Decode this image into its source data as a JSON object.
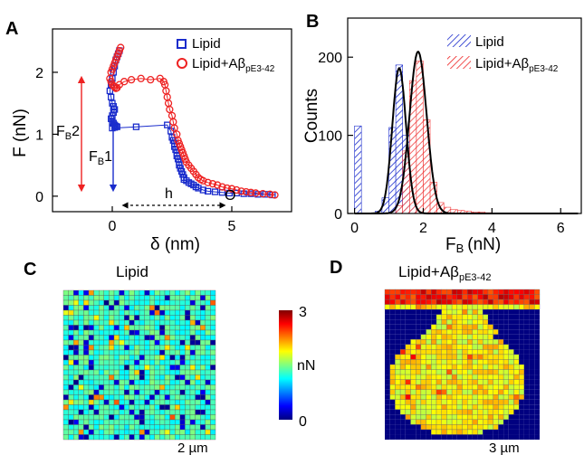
{
  "colors": {
    "lipid": "#1a2ccc",
    "lipid_abeta": "#ee2222",
    "fit": "#000000",
    "arrow_red": "#ee2222",
    "arrow_blue": "#1a2ccc",
    "map_background": "#000080"
  },
  "panels": {
    "a": {
      "letter": "A"
    },
    "b": {
      "letter": "B"
    },
    "c": {
      "letter": "C",
      "title": "Lipid",
      "scalebar": "2 µm"
    },
    "d": {
      "letter": "D",
      "title_main": "Lipid+Aβ",
      "title_sub": "pE3-42",
      "scalebar": "3 µm"
    }
  },
  "colorbar": {
    "min_label": "0",
    "max_label": "3",
    "unit": "nN",
    "stops": [
      "#00007f",
      "#0000ff",
      "#0080ff",
      "#00ffff",
      "#80ff80",
      "#ffff00",
      "#ff8000",
      "#ff0000",
      "#7f0000"
    ]
  },
  "chart_data": [
    {
      "type": "line",
      "panel": "A",
      "xlabel": "δ (nm)",
      "ylabel": "F (nN)",
      "xlim": [
        -2.5,
        7.5
      ],
      "ylim": [
        -0.25,
        2.7
      ],
      "xticks": [
        "0",
        "5"
      ],
      "yticks": [
        "0",
        "1",
        "2"
      ],
      "legend_placement": "top-right",
      "annotations": {
        "fb2": "F",
        "fb2_sub": "B",
        "fb2_num": "2",
        "fb1": "F",
        "fb1_sub": "B",
        "fb1_num": "1",
        "h": "h",
        "origin": "O"
      },
      "series": [
        {
          "name": "Lipid",
          "marker": "square",
          "x": [
            0.3,
            0.25,
            0.2,
            0.15,
            0.1,
            0.05,
            0.0,
            -0.05,
            -0.1,
            -0.05,
            0.0,
            0.05,
            0.1,
            0.05,
            0.0,
            -0.05,
            0.0,
            0.05,
            0.1,
            0.15,
            0.2,
            0.1,
            0.0,
            1.0,
            2.3,
            2.45,
            2.5,
            2.55,
            2.6,
            2.6,
            2.65,
            2.7,
            2.7,
            2.75,
            2.8,
            2.8,
            2.85,
            2.9,
            2.95,
            3.0,
            3.0,
            3.1,
            3.2,
            3.3,
            3.4,
            3.5,
            3.6,
            3.8,
            4.0,
            4.3,
            4.6,
            4.9,
            5.2,
            5.5,
            5.8,
            6.1,
            6.4,
            6.7
          ],
          "y": [
            2.35,
            2.3,
            2.25,
            2.2,
            2.1,
            2.0,
            1.9,
            1.8,
            1.7,
            1.6,
            1.5,
            1.45,
            1.4,
            1.35,
            1.3,
            1.25,
            1.2,
            1.18,
            1.15,
            1.13,
            1.12,
            1.11,
            1.1,
            1.12,
            1.15,
            1.05,
            0.95,
            0.9,
            0.85,
            0.8,
            0.75,
            0.7,
            0.65,
            0.6,
            0.55,
            0.5,
            0.45,
            0.4,
            0.35,
            0.3,
            0.27,
            0.25,
            0.22,
            0.2,
            0.18,
            0.15,
            0.13,
            0.1,
            0.08,
            0.07,
            0.06,
            0.05,
            0.05,
            0.04,
            0.04,
            0.03,
            0.03,
            0.02
          ]
        },
        {
          "name": "Lipid+Aβ",
          "name_sub": "pE3-42",
          "marker": "circle",
          "x": [
            0.35,
            0.3,
            0.25,
            0.2,
            0.15,
            0.1,
            0.05,
            0.0,
            -0.05,
            -0.1,
            -0.05,
            0.0,
            0.05,
            0.1,
            0.15,
            0.2,
            0.3,
            0.5,
            0.8,
            1.2,
            1.6,
            2.0,
            2.15,
            2.2,
            2.25,
            2.3,
            2.35,
            2.4,
            2.5,
            2.55,
            2.6,
            2.7,
            2.75,
            2.8,
            2.85,
            2.9,
            2.95,
            3.0,
            3.05,
            3.1,
            3.2,
            3.3,
            3.4,
            3.5,
            3.6,
            3.7,
            3.8,
            4.0,
            4.2,
            4.4,
            4.6,
            4.8,
            5.0,
            5.2,
            5.4,
            5.6,
            5.8,
            6.0,
            6.3,
            6.6,
            6.8
          ],
          "y": [
            2.4,
            2.35,
            2.3,
            2.25,
            2.2,
            2.15,
            2.1,
            2.05,
            2.0,
            1.9,
            1.85,
            1.8,
            1.78,
            1.76,
            1.74,
            1.75,
            1.8,
            1.85,
            1.88,
            1.9,
            1.88,
            1.9,
            1.85,
            1.8,
            1.7,
            1.6,
            1.5,
            1.4,
            1.3,
            1.2,
            1.1,
            1.0,
            0.9,
            0.85,
            0.8,
            0.75,
            0.7,
            0.65,
            0.6,
            0.55,
            0.5,
            0.45,
            0.4,
            0.35,
            0.3,
            0.27,
            0.25,
            0.22,
            0.2,
            0.18,
            0.15,
            0.13,
            0.12,
            0.1,
            0.08,
            0.07,
            0.06,
            0.05,
            0.04,
            0.03,
            0.02
          ]
        }
      ]
    },
    {
      "type": "bar",
      "panel": "B",
      "xlabel": "F",
      "xlabel_sub": "B",
      "xlabel_unit": "(nN)",
      "ylabel": "Counts",
      "xlim": [
        -0.2,
        6.6
      ],
      "ylim": [
        0,
        250
      ],
      "xticks": [
        "0",
        "2",
        "4",
        "6"
      ],
      "yticks": [
        "0",
        "100",
        "200"
      ],
      "legend_placement": "top-right",
      "bin_width": 0.2,
      "series": [
        {
          "name": "Lipid",
          "hatch": "diagonal",
          "bin_left": [
            0.0,
            0.6,
            0.8,
            1.0,
            1.2,
            1.4,
            1.6
          ],
          "counts": [
            112,
            3,
            20,
            110,
            190,
            100,
            10
          ]
        },
        {
          "name": "Lipid+Aβ",
          "name_sub": "pE3-42",
          "hatch": "diagonal",
          "bin_left": [
            1.2,
            1.4,
            1.6,
            1.8,
            2.0,
            2.2,
            2.4,
            2.6,
            2.8,
            3.0,
            3.2,
            3.4,
            3.6,
            3.8
          ],
          "counts": [
            10,
            80,
            170,
            195,
            120,
            40,
            14,
            8,
            5,
            4,
            3,
            2,
            2,
            1
          ]
        }
      ],
      "fits": [
        {
          "type": "gaussian",
          "mean": 1.3,
          "sigma": 0.2,
          "amplitude": 186
        },
        {
          "type": "gaussian",
          "mean": 1.85,
          "sigma": 0.25,
          "amplitude": 207
        }
      ]
    },
    {
      "type": "heatmap",
      "panel": "C",
      "rows": 30,
      "cols": 30,
      "unit": "nN",
      "value_range": [
        0,
        3
      ],
      "typical_value": 1.3,
      "low_value_fraction": 0.12,
      "high_value_fraction": 0.05
    },
    {
      "type": "heatmap",
      "panel": "D",
      "rows": 30,
      "cols": 30,
      "unit": "nN",
      "value_range": [
        0,
        3
      ],
      "background_value": 0,
      "typical_value": 1.9,
      "top_edge_value": 2.6
    }
  ]
}
